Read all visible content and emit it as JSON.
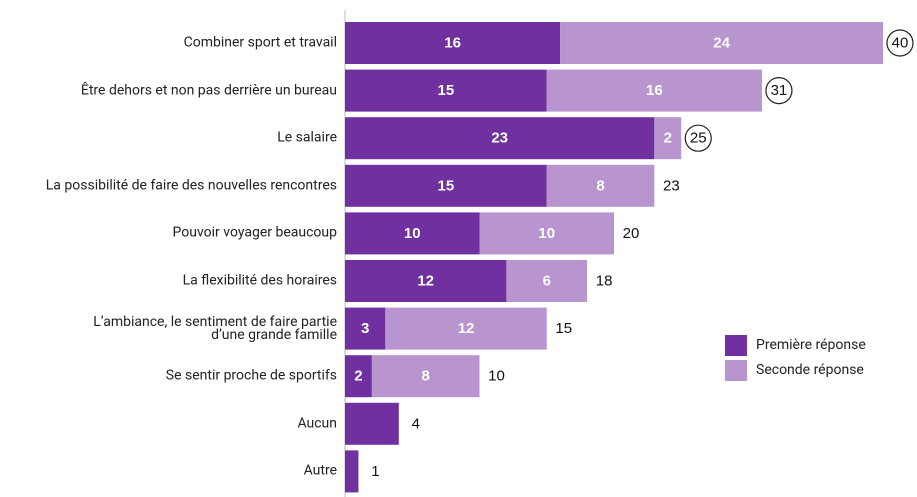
{
  "chart_data": {
    "type": "bar",
    "orientation": "horizontal",
    "stacked": true,
    "categories": [
      "Combiner sport et travail",
      "Être dehors et non pas derrière un bureau",
      "Le salaire",
      "La possibilité de faire des nouvelles rencontres",
      "Pouvoir voyager beaucoup",
      "La flexibilité des horaires",
      "L’ambiance, le sentiment de faire partie\nd’une grande famille",
      "Se sentir proche de sportifs",
      "Aucun",
      "Autre"
    ],
    "series": [
      {
        "name": "Première réponse",
        "color": "#7030a0",
        "values": [
          16,
          15,
          23,
          15,
          10,
          12,
          3,
          2,
          4,
          1
        ]
      },
      {
        "name": "Seconde réponse",
        "color": "#b995d0",
        "values": [
          24,
          16,
          2,
          8,
          10,
          6,
          12,
          8,
          0,
          0
        ]
      }
    ],
    "totals": [
      40,
      31,
      25,
      23,
      20,
      18,
      15,
      10,
      4,
      1
    ],
    "circled": [
      true,
      true,
      true,
      false,
      false,
      false,
      false,
      false,
      false,
      false
    ],
    "xlim": [
      0,
      40
    ],
    "legend": "right"
  }
}
